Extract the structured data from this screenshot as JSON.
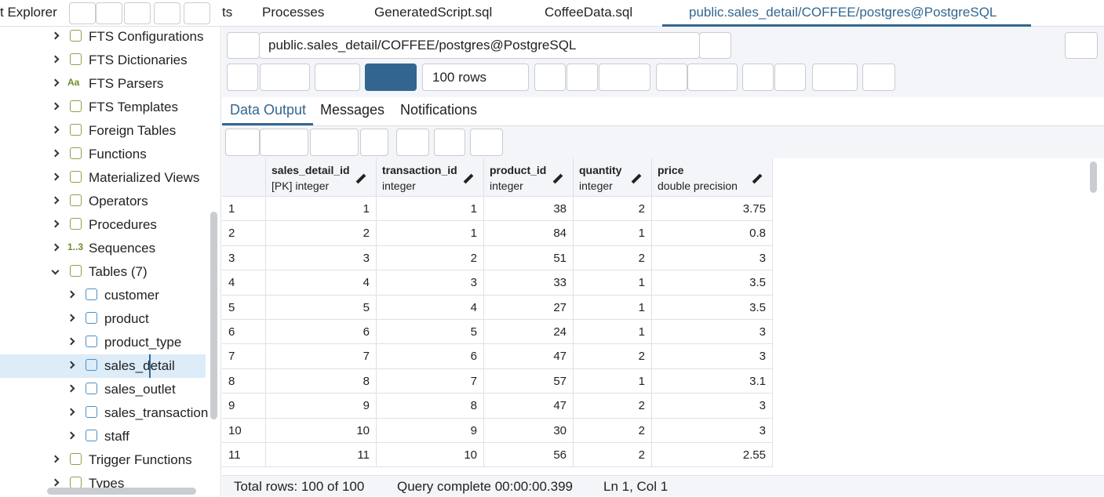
{
  "tabs": [
    "t Explorer",
    "ts",
    "Processes",
    "GeneratedScript.sql",
    "CoffeeData.sql",
    "public.sales_detail/COFFEE/postgres@PostgreSQL"
  ],
  "tree": {
    "before": [
      {
        "label": "FTS Configurations"
      },
      {
        "label": "FTS Dictionaries"
      },
      {
        "label": "FTS Parsers",
        "icon": "Aa"
      },
      {
        "label": "FTS Templates"
      },
      {
        "label": "Foreign Tables"
      },
      {
        "label": "Functions"
      },
      {
        "label": "Materialized Views"
      },
      {
        "label": "Operators"
      },
      {
        "label": "Procedures"
      },
      {
        "label": "Sequences",
        "icon": "1..3"
      }
    ],
    "tables": {
      "label": "Tables (7)",
      "children": [
        "customer",
        "product",
        "product_type",
        "sales_detail",
        "sales_outlet",
        "sales_transaction",
        "staff"
      ]
    },
    "after": [
      {
        "label": "Trigger Functions"
      },
      {
        "label": "Types"
      }
    ]
  },
  "query_bar": "public.sales_detail/COFFEE/postgres@PostgreSQL",
  "row_limit": "100 rows",
  "result_tabs": [
    "Data Output",
    "Messages",
    "Notifications"
  ],
  "table": {
    "columns": [
      {
        "name": "sales_detail_id",
        "type": "[PK] integer"
      },
      {
        "name": "transaction_id",
        "type": "integer"
      },
      {
        "name": "product_id",
        "type": "integer"
      },
      {
        "name": "quantity",
        "type": "integer"
      },
      {
        "name": "price",
        "type": "double precision"
      }
    ],
    "rows": [
      [
        1,
        1,
        1,
        38,
        2,
        3.75
      ],
      [
        2,
        2,
        1,
        84,
        1,
        0.8
      ],
      [
        3,
        3,
        2,
        51,
        2,
        3
      ],
      [
        4,
        4,
        3,
        33,
        1,
        3.5
      ],
      [
        5,
        5,
        4,
        27,
        1,
        3.5
      ],
      [
        6,
        6,
        5,
        24,
        1,
        3
      ],
      [
        7,
        7,
        6,
        47,
        2,
        3
      ],
      [
        8,
        8,
        7,
        57,
        1,
        3.1
      ],
      [
        9,
        9,
        8,
        47,
        2,
        3
      ],
      [
        10,
        10,
        9,
        30,
        2,
        3
      ],
      [
        11,
        11,
        10,
        56,
        2,
        2.55
      ]
    ]
  },
  "status": {
    "rows": "Total rows: 100 of 100",
    "query": "Query complete 00:00:00.399",
    "cursor": "Ln 1, Col 1"
  }
}
